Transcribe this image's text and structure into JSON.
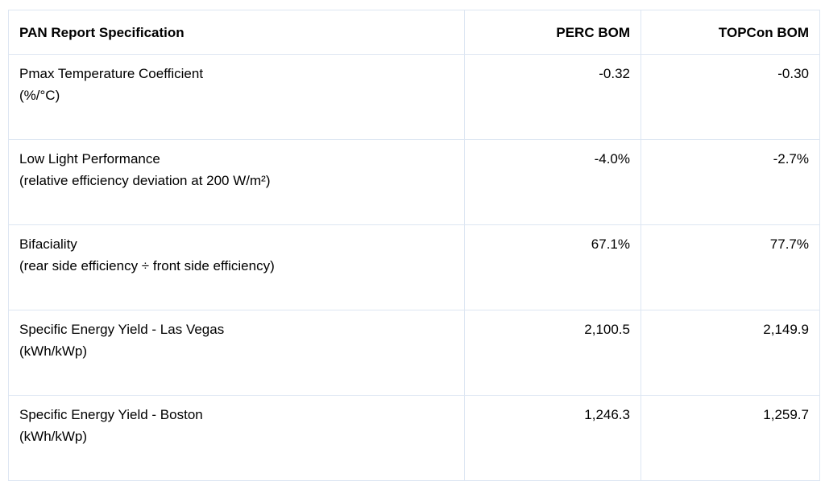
{
  "chart_data": {
    "type": "table",
    "title": "PAN Report Specification",
    "columns": [
      "PAN Report Specification",
      "PERC BOM",
      "TOPCon BOM"
    ],
    "rows": [
      {
        "spec": "Pmax Temperature Coefficient",
        "detail": "(%/°C)",
        "perc": "-0.32",
        "topcon": "-0.30"
      },
      {
        "spec": "Low Light Performance",
        "detail": "(relative efficiency deviation at 200 W/m²)",
        "perc": "-4.0%",
        "topcon": "-2.7%"
      },
      {
        "spec": "Bifaciality",
        "detail": "(rear side efficiency ÷ front side efficiency)",
        "perc": "67.1%",
        "topcon": "77.7%"
      },
      {
        "spec": "Specific Energy Yield - Las Vegas",
        "detail": "(kWh/kWp)",
        "perc": "2,100.5",
        "topcon": "2,149.9"
      },
      {
        "spec": "Specific Energy Yield - Boston",
        "detail": "(kWh/kWp)",
        "perc": "1,246.3",
        "topcon": "1,259.7"
      }
    ],
    "layout": {
      "grid": "full-borders",
      "border_color": "#dde6f2",
      "header_bold": true,
      "value_alignment": "right",
      "spec_alignment": "left"
    }
  }
}
